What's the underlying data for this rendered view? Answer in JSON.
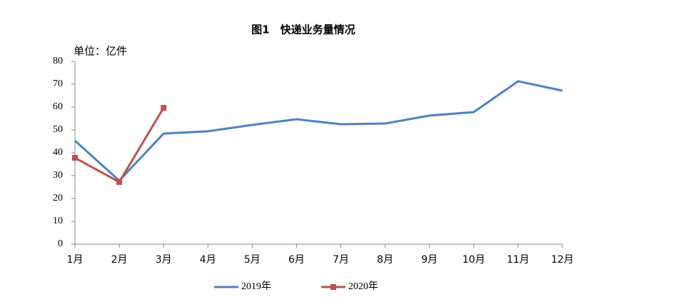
{
  "chart_data": {
    "type": "line",
    "title": "图1　快递业务量情况",
    "y_unit_label": "单位：亿件",
    "categories": [
      "1月",
      "2月",
      "3月",
      "4月",
      "5月",
      "6月",
      "7月",
      "8月",
      "9月",
      "10月",
      "11月",
      "12月"
    ],
    "series": [
      {
        "name": "2019年",
        "color": "#4f81bd",
        "marker": "none",
        "values": [
          45.3,
          27.8,
          48.4,
          49.4,
          52.2,
          54.7,
          52.5,
          52.8,
          56.3,
          57.8,
          71.3,
          67.2
        ]
      },
      {
        "name": "2020年",
        "color": "#c0504d",
        "marker": "square",
        "values": [
          37.8,
          27.2,
          59.7,
          null,
          null,
          null,
          null,
          null,
          null,
          null,
          null,
          null
        ]
      }
    ],
    "ylim": [
      0,
      80
    ],
    "yticks": [
      0,
      10,
      20,
      30,
      40,
      50,
      60,
      70,
      80
    ],
    "grid": false,
    "legend": "bottom"
  }
}
